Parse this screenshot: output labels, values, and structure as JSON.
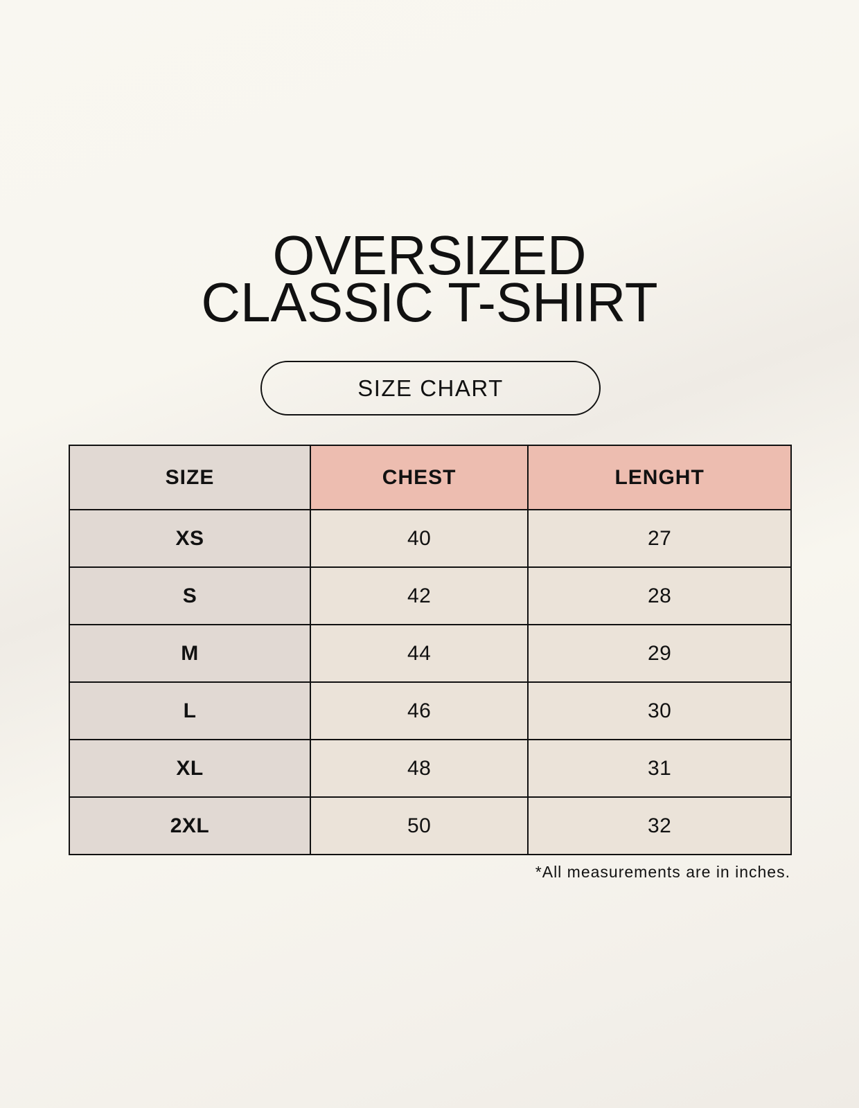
{
  "title": {
    "line1": "OVERSIZED",
    "line2": "CLASSIC T-SHIRT"
  },
  "badge": "SIZE CHART",
  "table": {
    "headers": [
      "SIZE",
      "CHEST",
      "LENGHT"
    ],
    "rows": [
      [
        "XS",
        "40",
        "27"
      ],
      [
        "S",
        "42",
        "28"
      ],
      [
        "M",
        "44",
        "29"
      ],
      [
        "L",
        "46",
        "30"
      ],
      [
        "XL",
        "48",
        "31"
      ],
      [
        "2XL",
        "50",
        "32"
      ]
    ]
  },
  "note": "*All measurements are in inches.",
  "colors": {
    "size_column": "#e1d9d3",
    "header_accent": "#edbdb0",
    "cells": "#ebe3d9",
    "background": "#f8f6ef"
  }
}
